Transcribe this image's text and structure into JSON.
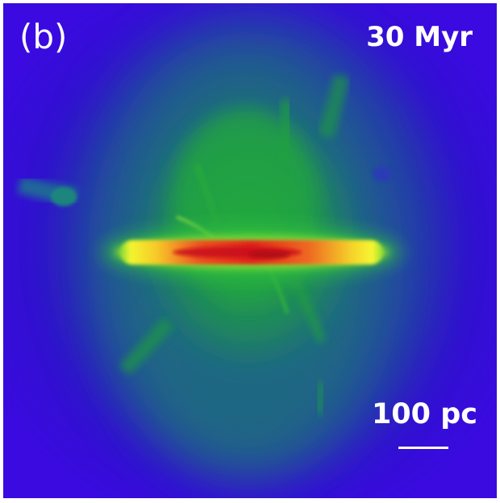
{
  "figure": {
    "panel_label": "(b)",
    "time_label": "30 Myr",
    "scale_bar_label": "100 pc"
  },
  "colors": {
    "background": "#2a10c8",
    "halo": "#1a8a7a",
    "green": "#22b040",
    "yellow": "#f6f02a",
    "red": "#e0201a"
  }
}
